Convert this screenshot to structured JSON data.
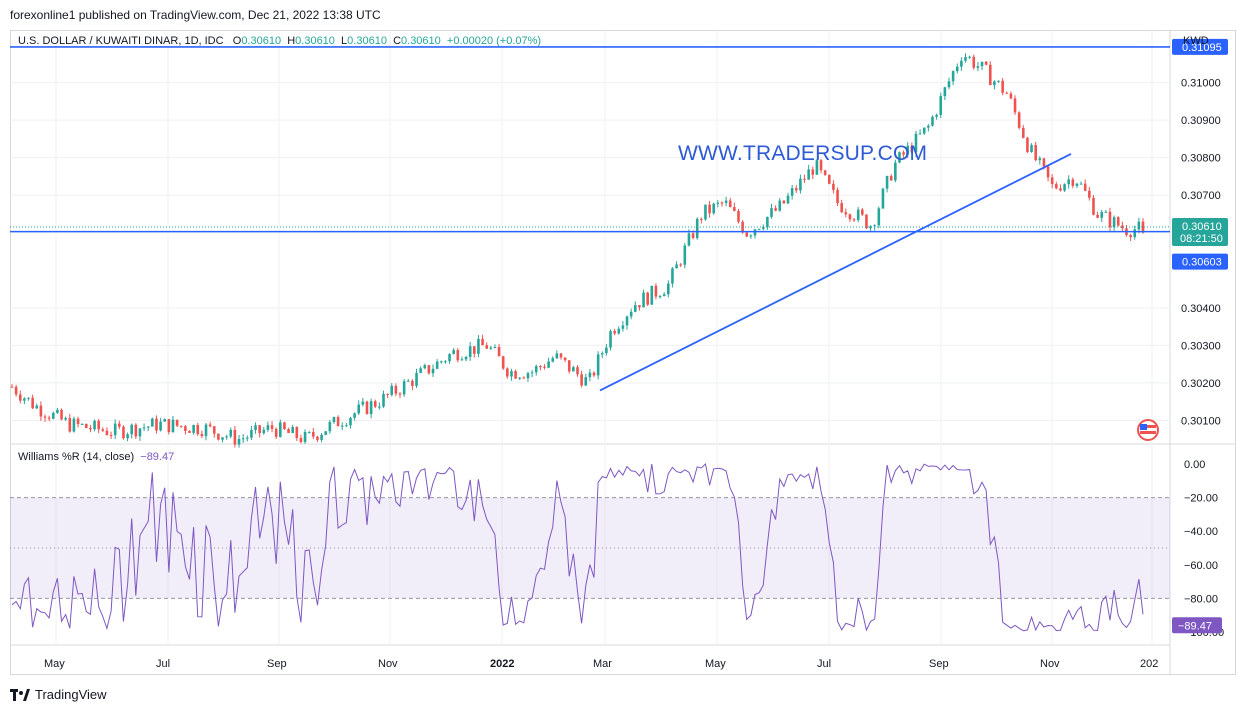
{
  "header": {
    "publish_line": "forexonline1 published on TradingView.com, Dec 21, 2022 13:38 UTC"
  },
  "legend": {
    "symbol": "U.S. DOLLAR / KUWAITI DINAR, 1D, IDC",
    "o_label": "O",
    "o": "0.30610",
    "h_label": "H",
    "h": "0.30610",
    "l_label": "L",
    "l": "0.30610",
    "c_label": "C",
    "c": "0.30610",
    "change": "+0.00020 (+0.07%)"
  },
  "currency": "KWD",
  "watermark": "WWW.TRADERSUP.COM",
  "indicator": {
    "name": "Williams %R (14, close)",
    "value": "−89.47"
  },
  "price_badges": {
    "resistance": "0.31095",
    "last_price": "0.30610",
    "countdown": "08:21:50",
    "support": "0.30603",
    "wr_value": "−89.47"
  },
  "colors": {
    "up": "#26a69a",
    "down": "#ef5350",
    "line": "#2962ff",
    "wr": "#7e57c2"
  },
  "footer": {
    "brand": "TradingView"
  },
  "chart_data": {
    "type": "candlestick",
    "price_axis_ticks": [
      "0.31000",
      "0.30900",
      "0.30800",
      "0.30700",
      "0.30400",
      "0.30300",
      "0.30200",
      "0.30100"
    ],
    "price_range": [
      0.3004,
      0.3114
    ],
    "time_axis_labels": [
      "May",
      "Jul",
      "Sep",
      "Nov",
      "2022",
      "Mar",
      "May",
      "Jul",
      "Sep",
      "Nov",
      "202"
    ],
    "horizontal_levels": [
      0.31095,
      0.30603
    ],
    "trendline": {
      "from": [
        "Mar 2022",
        0.3018
      ],
      "to": [
        "Nov 2022",
        0.3081
      ]
    },
    "anchors": [
      [
        0,
        0.3019
      ],
      [
        0.02,
        0.3014
      ],
      [
        0.05,
        0.3009
      ],
      [
        0.09,
        0.3007
      ],
      [
        0.13,
        0.3009
      ],
      [
        0.17,
        0.3008
      ],
      [
        0.2,
        0.3005
      ],
      [
        0.23,
        0.3008
      ],
      [
        0.26,
        0.3005
      ],
      [
        0.29,
        0.301
      ],
      [
        0.33,
        0.3016
      ],
      [
        0.36,
        0.3022
      ],
      [
        0.39,
        0.3028
      ],
      [
        0.42,
        0.303
      ],
      [
        0.44,
        0.3023
      ],
      [
        0.46,
        0.3023
      ],
      [
        0.48,
        0.3027
      ],
      [
        0.51,
        0.302
      ],
      [
        0.53,
        0.3034
      ],
      [
        0.55,
        0.3041
      ],
      [
        0.58,
        0.3046
      ],
      [
        0.61,
        0.3065
      ],
      [
        0.63,
        0.3068
      ],
      [
        0.65,
        0.306
      ],
      [
        0.68,
        0.3067
      ],
      [
        0.71,
        0.3078
      ],
      [
        0.73,
        0.3068
      ],
      [
        0.76,
        0.3062
      ],
      [
        0.78,
        0.3078
      ],
      [
        0.81,
        0.3088
      ],
      [
        0.84,
        0.3108
      ],
      [
        0.86,
        0.3103
      ],
      [
        0.88,
        0.3097
      ],
      [
        0.9,
        0.3082
      ],
      [
        0.92,
        0.3072
      ],
      [
        0.94,
        0.3075
      ],
      [
        0.96,
        0.3065
      ],
      [
        0.985,
        0.3061
      ]
    ],
    "williams_r": {
      "range": [
        -100,
        0
      ],
      "ticks": [
        "0.00",
        "−20.00",
        "−40.00",
        "−60.00",
        "−80.00",
        "−100.00"
      ],
      "levels": [
        -20,
        -50,
        -80
      ],
      "last": -89.47
    }
  }
}
